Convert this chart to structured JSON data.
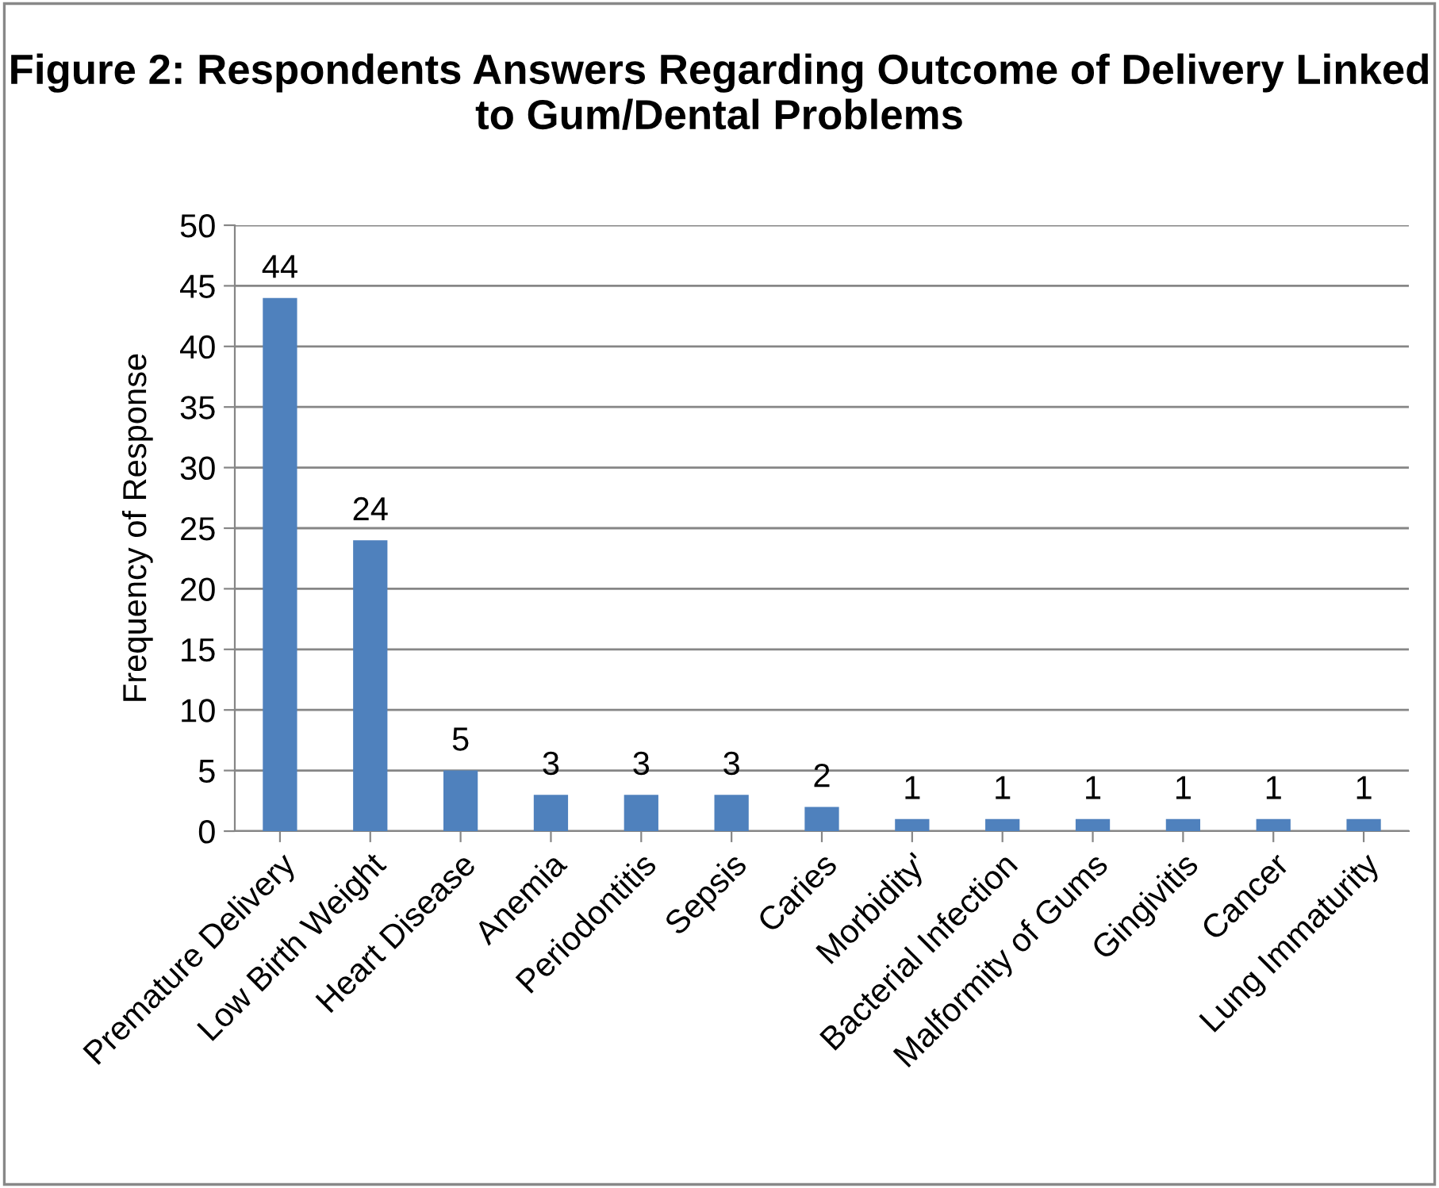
{
  "chart_data": {
    "type": "bar",
    "title": "Figure 2: Respondents Answers Regarding Outcome of Delivery Linked to Gum/Dental Problems",
    "ylabel": "Frequency of Response",
    "categories": [
      "Premature Delivery",
      "Low Birth Weight",
      "Heart Disease",
      "Anemia",
      "Periodontitis",
      "Sepsis",
      "Caries",
      "Morbidity'",
      "Bacterial Infection",
      "Malformity of Gums",
      "Gingivitis",
      "Cancer",
      "Lung Immaturity"
    ],
    "values": [
      44,
      24,
      5,
      3,
      3,
      3,
      2,
      1,
      1,
      1,
      1,
      1,
      1
    ],
    "color": "#4f81bd",
    "ylim": [
      0,
      50
    ],
    "yticks": [
      0,
      5,
      10,
      15,
      20,
      25,
      30,
      35,
      40,
      45,
      50
    ],
    "grid": "y",
    "data_labels": true
  }
}
